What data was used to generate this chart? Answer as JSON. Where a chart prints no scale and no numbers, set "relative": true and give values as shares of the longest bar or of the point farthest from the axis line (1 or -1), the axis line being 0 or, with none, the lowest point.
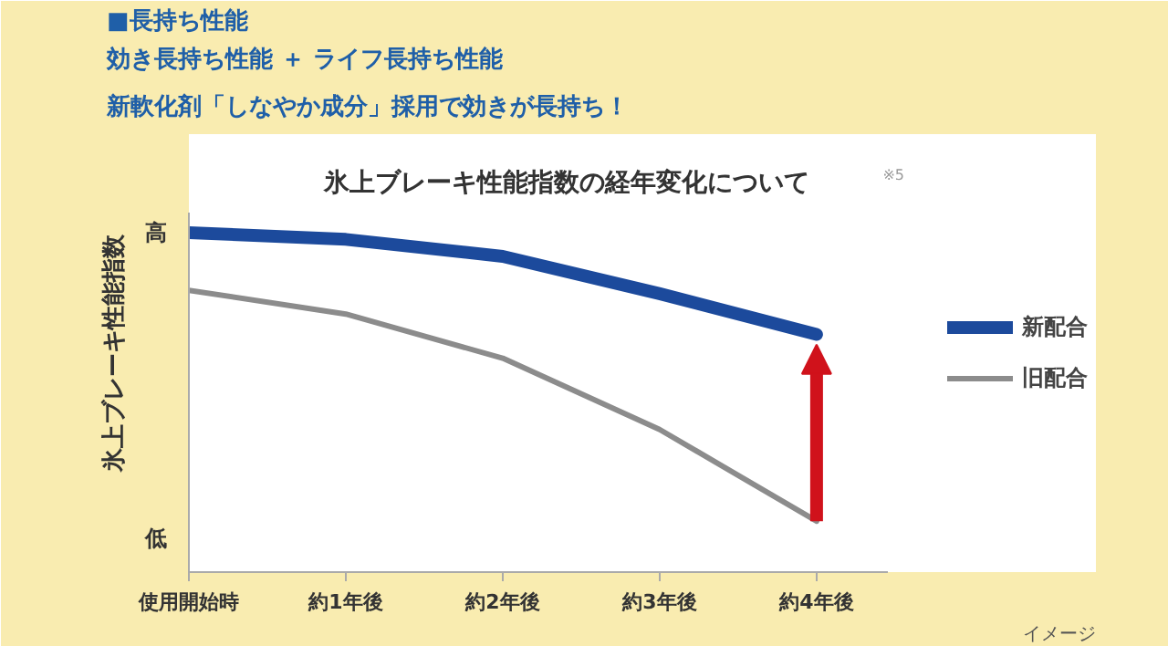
{
  "chart_data": {
    "type": "line",
    "title": "氷上ブレーキ性能指数の経年変化について",
    "ylabel": "氷上ブレーキ性能指数",
    "relative": true,
    "categories": [
      "使用開始時",
      "約1年後",
      "約2年後",
      "約3年後",
      "約4年後"
    ],
    "series": [
      {
        "name": "新配合",
        "color": "#1c4a9c",
        "values": [
          1.0,
          0.98,
          0.93,
          0.82,
          0.7
        ]
      },
      {
        "name": "旧配合",
        "color": "#8c8c8c",
        "values": [
          0.83,
          0.76,
          0.63,
          0.42,
          0.15
        ]
      }
    ],
    "legend": "right",
    "grid": false,
    "marker": "none",
    "line_style": "solid",
    "annotations": [
      "■長持ち性能",
      "効き長持ち性能 ＋ ライフ長持ち性能",
      "新軟化剤「しなやか成分」採用で効きが長持ち！",
      "高",
      "低",
      "※5",
      "イメージ"
    ]
  }
}
